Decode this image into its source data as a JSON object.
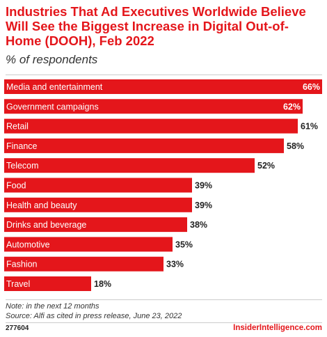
{
  "title": "Industries That Ad Executives Worldwide Believe Will See the Biggest Increase in Digital Out-of-Home (DOOH), Feb 2022",
  "subtitle": "% of respondents",
  "note": "Note: in the next 12 months",
  "source": "Source: Alfi as cited in press release, June 23, 2022",
  "chart_id": "277604",
  "brand": "InsiderIntelligence.com",
  "colors": {
    "bar": "#e4161b",
    "title": "#e4161b"
  },
  "chart_data": {
    "type": "bar",
    "orientation": "horizontal",
    "categories": [
      "Media and entertainment",
      "Government campaigns",
      "Retail",
      "Finance",
      "Telecom",
      "Food",
      "Health and beauty",
      "Drinks and beverage",
      "Automotive",
      "Fashion",
      "Travel"
    ],
    "values": [
      66,
      62,
      61,
      58,
      52,
      39,
      39,
      38,
      35,
      33,
      18
    ],
    "value_suffix": "%",
    "title": "Industries That Ad Executives Worldwide Believe Will See the Biggest Increase in Digital Out-of-Home (DOOH), Feb 2022",
    "xlabel": "",
    "ylabel": "",
    "xlim": [
      0,
      66
    ],
    "grid": false,
    "legend": "none"
  }
}
